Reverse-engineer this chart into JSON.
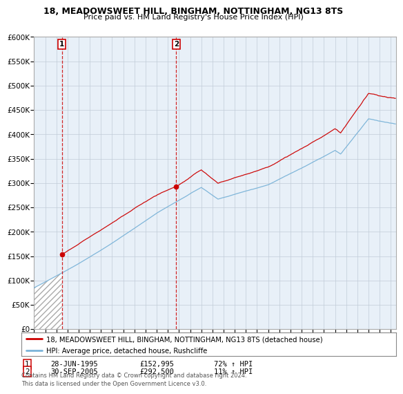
{
  "title1": "18, MEADOWSWEET HILL, BINGHAM, NOTTINGHAM, NG13 8TS",
  "title2": "Price paid vs. HM Land Registry's House Price Index (HPI)",
  "legend_line1": "18, MEADOWSWEET HILL, BINGHAM, NOTTINGHAM, NG13 8TS (detached house)",
  "legend_line2": "HPI: Average price, detached house, Rushcliffe",
  "table_row1": [
    "1",
    "28-JUN-1995",
    "£152,995",
    "72% ↑ HPI"
  ],
  "table_row2": [
    "2",
    "30-SEP-2005",
    "£292,500",
    "11% ↑ HPI"
  ],
  "footer": "Contains HM Land Registry data © Crown copyright and database right 2024.\nThis data is licensed under the Open Government Licence v3.0.",
  "sale1_year": 1995.5,
  "sale1_price": 152995,
  "sale2_year": 2005.75,
  "sale2_price": 292500,
  "ylim_min": 0,
  "ylim_max": 600000,
  "xlim_min": 1993,
  "xlim_max": 2025.5,
  "hpi_color": "#7ab3d8",
  "price_color": "#cc0000",
  "background_plot": "#e8f0f8",
  "background_fig": "#ffffff",
  "grid_color": "#c0ccd8"
}
